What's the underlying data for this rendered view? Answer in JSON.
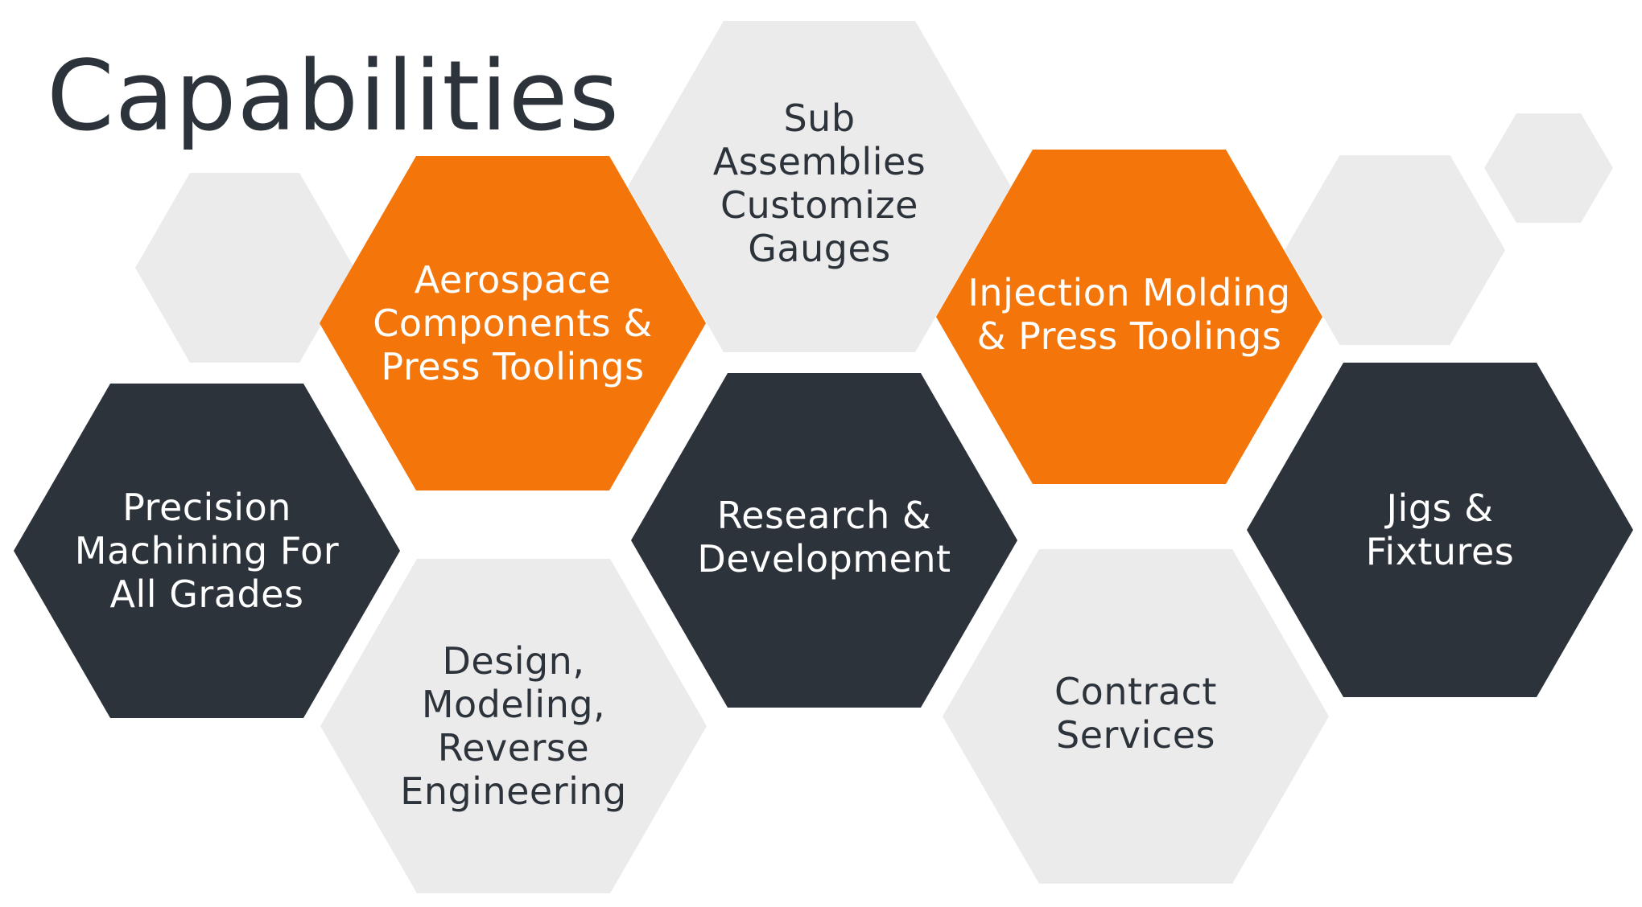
{
  "page": {
    "title": "Capabilities"
  },
  "colors": {
    "orange": "#f47509",
    "dark": "#2d333b",
    "gray": "#ebebeb",
    "text": "#2d333b",
    "white": "#ffffff"
  },
  "hexagons": [
    {
      "id": "decor-hex-left",
      "tone": "gray",
      "label": ""
    },
    {
      "id": "hex-aerospace",
      "tone": "orange",
      "label": "Aerospace\nComponents &\nPress Toolings"
    },
    {
      "id": "hex-sub-assemblies",
      "tone": "gray",
      "label": "Sub\nAssemblies\nCustomize\nGauges"
    },
    {
      "id": "hex-injection-molding",
      "tone": "orange",
      "label": "Injection Molding\n& Press Toolings"
    },
    {
      "id": "decor-hex-right-medium",
      "tone": "gray",
      "label": ""
    },
    {
      "id": "decor-hex-right-small",
      "tone": "gray",
      "label": ""
    },
    {
      "id": "hex-precision-machining",
      "tone": "dark",
      "label": "Precision\nMachining For\nAll Grades"
    },
    {
      "id": "hex-research-development",
      "tone": "dark",
      "label": "Research &\nDevelopment"
    },
    {
      "id": "hex-jigs-fixtures",
      "tone": "dark",
      "label": "Jigs & Fixtures"
    },
    {
      "id": "hex-design-modeling",
      "tone": "gray",
      "label": "Design,\nModeling,\nReverse\nEngineering"
    },
    {
      "id": "hex-contract-services",
      "tone": "gray",
      "label": "Contract\nServices"
    }
  ]
}
